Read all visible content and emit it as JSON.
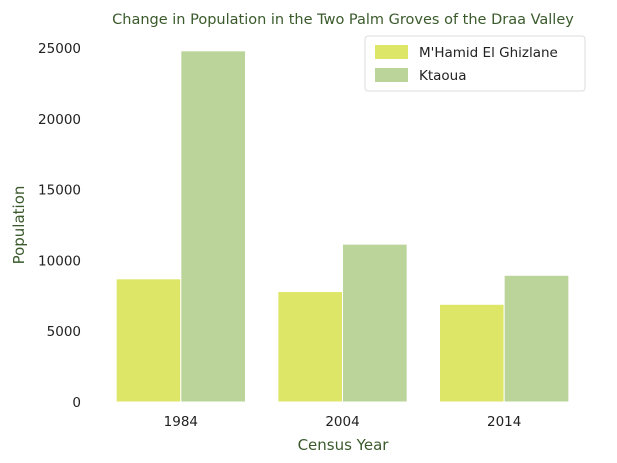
{
  "chart_data": {
    "type": "bar",
    "title": "Change in Population in the Two Palm Groves of the Draa Valley",
    "xlabel": "Census Year",
    "ylabel": "Population",
    "categories": [
      "1984",
      "2004",
      "2014"
    ],
    "ylim": [
      0,
      25000
    ],
    "yticks": [
      "0",
      "5000",
      "10000",
      "15000",
      "20000",
      "25000"
    ],
    "grid": false,
    "legend_position": "top-right",
    "series": [
      {
        "name": "M'Hamid El Ghizlane",
        "values": [
          8700,
          7800,
          6900
        ],
        "color": "#dde666"
      },
      {
        "name": "Ktaoua",
        "values": [
          24800,
          11150,
          8950
        ],
        "color": "#bad49a"
      }
    ]
  }
}
